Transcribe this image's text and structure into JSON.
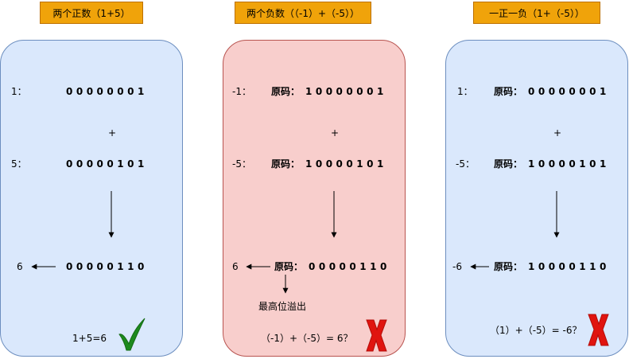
{
  "panels": [
    {
      "header": "两个正数（1+5）",
      "row1_label": "1：",
      "row1_bits": "00000001",
      "plus": "+",
      "row2_label": "5：",
      "row2_bits": "00000101",
      "result_label": "6",
      "result_bits": "00000110",
      "footer": "1+5=6",
      "status": "check-mark"
    },
    {
      "header": "两个负数（（-1）+（-5））",
      "row1_label": "-1：",
      "row1_prefix": "原码：",
      "row1_bits": "10000001",
      "plus": "+",
      "row2_label": "-5：",
      "row2_prefix": "原码：",
      "row2_bits": "10000101",
      "result_label": "6",
      "result_prefix": "原码：",
      "result_bits": "00000110",
      "overflow_note": "最高位溢出",
      "footer": "（-1）+（-5）= 6？",
      "status": "cross-mark"
    },
    {
      "header": "一正一负（1+（-5））",
      "row1_label": "1：",
      "row1_prefix": "原码：",
      "row1_bits": "00000001",
      "plus": "+",
      "row2_label": "-5：",
      "row2_prefix": "原码：",
      "row2_bits": "10000101",
      "result_label": "-6",
      "result_prefix": "原码：",
      "result_bits": "10000110",
      "footer": "（1）+（-5）= -6？",
      "status": "cross-mark"
    }
  ],
  "colors": {
    "header_fill": "#f0a30a",
    "blue_fill": "#dae8fc",
    "red_fill": "#f8cecc",
    "check": "#1d8a1d",
    "cross": "#e0140f"
  }
}
